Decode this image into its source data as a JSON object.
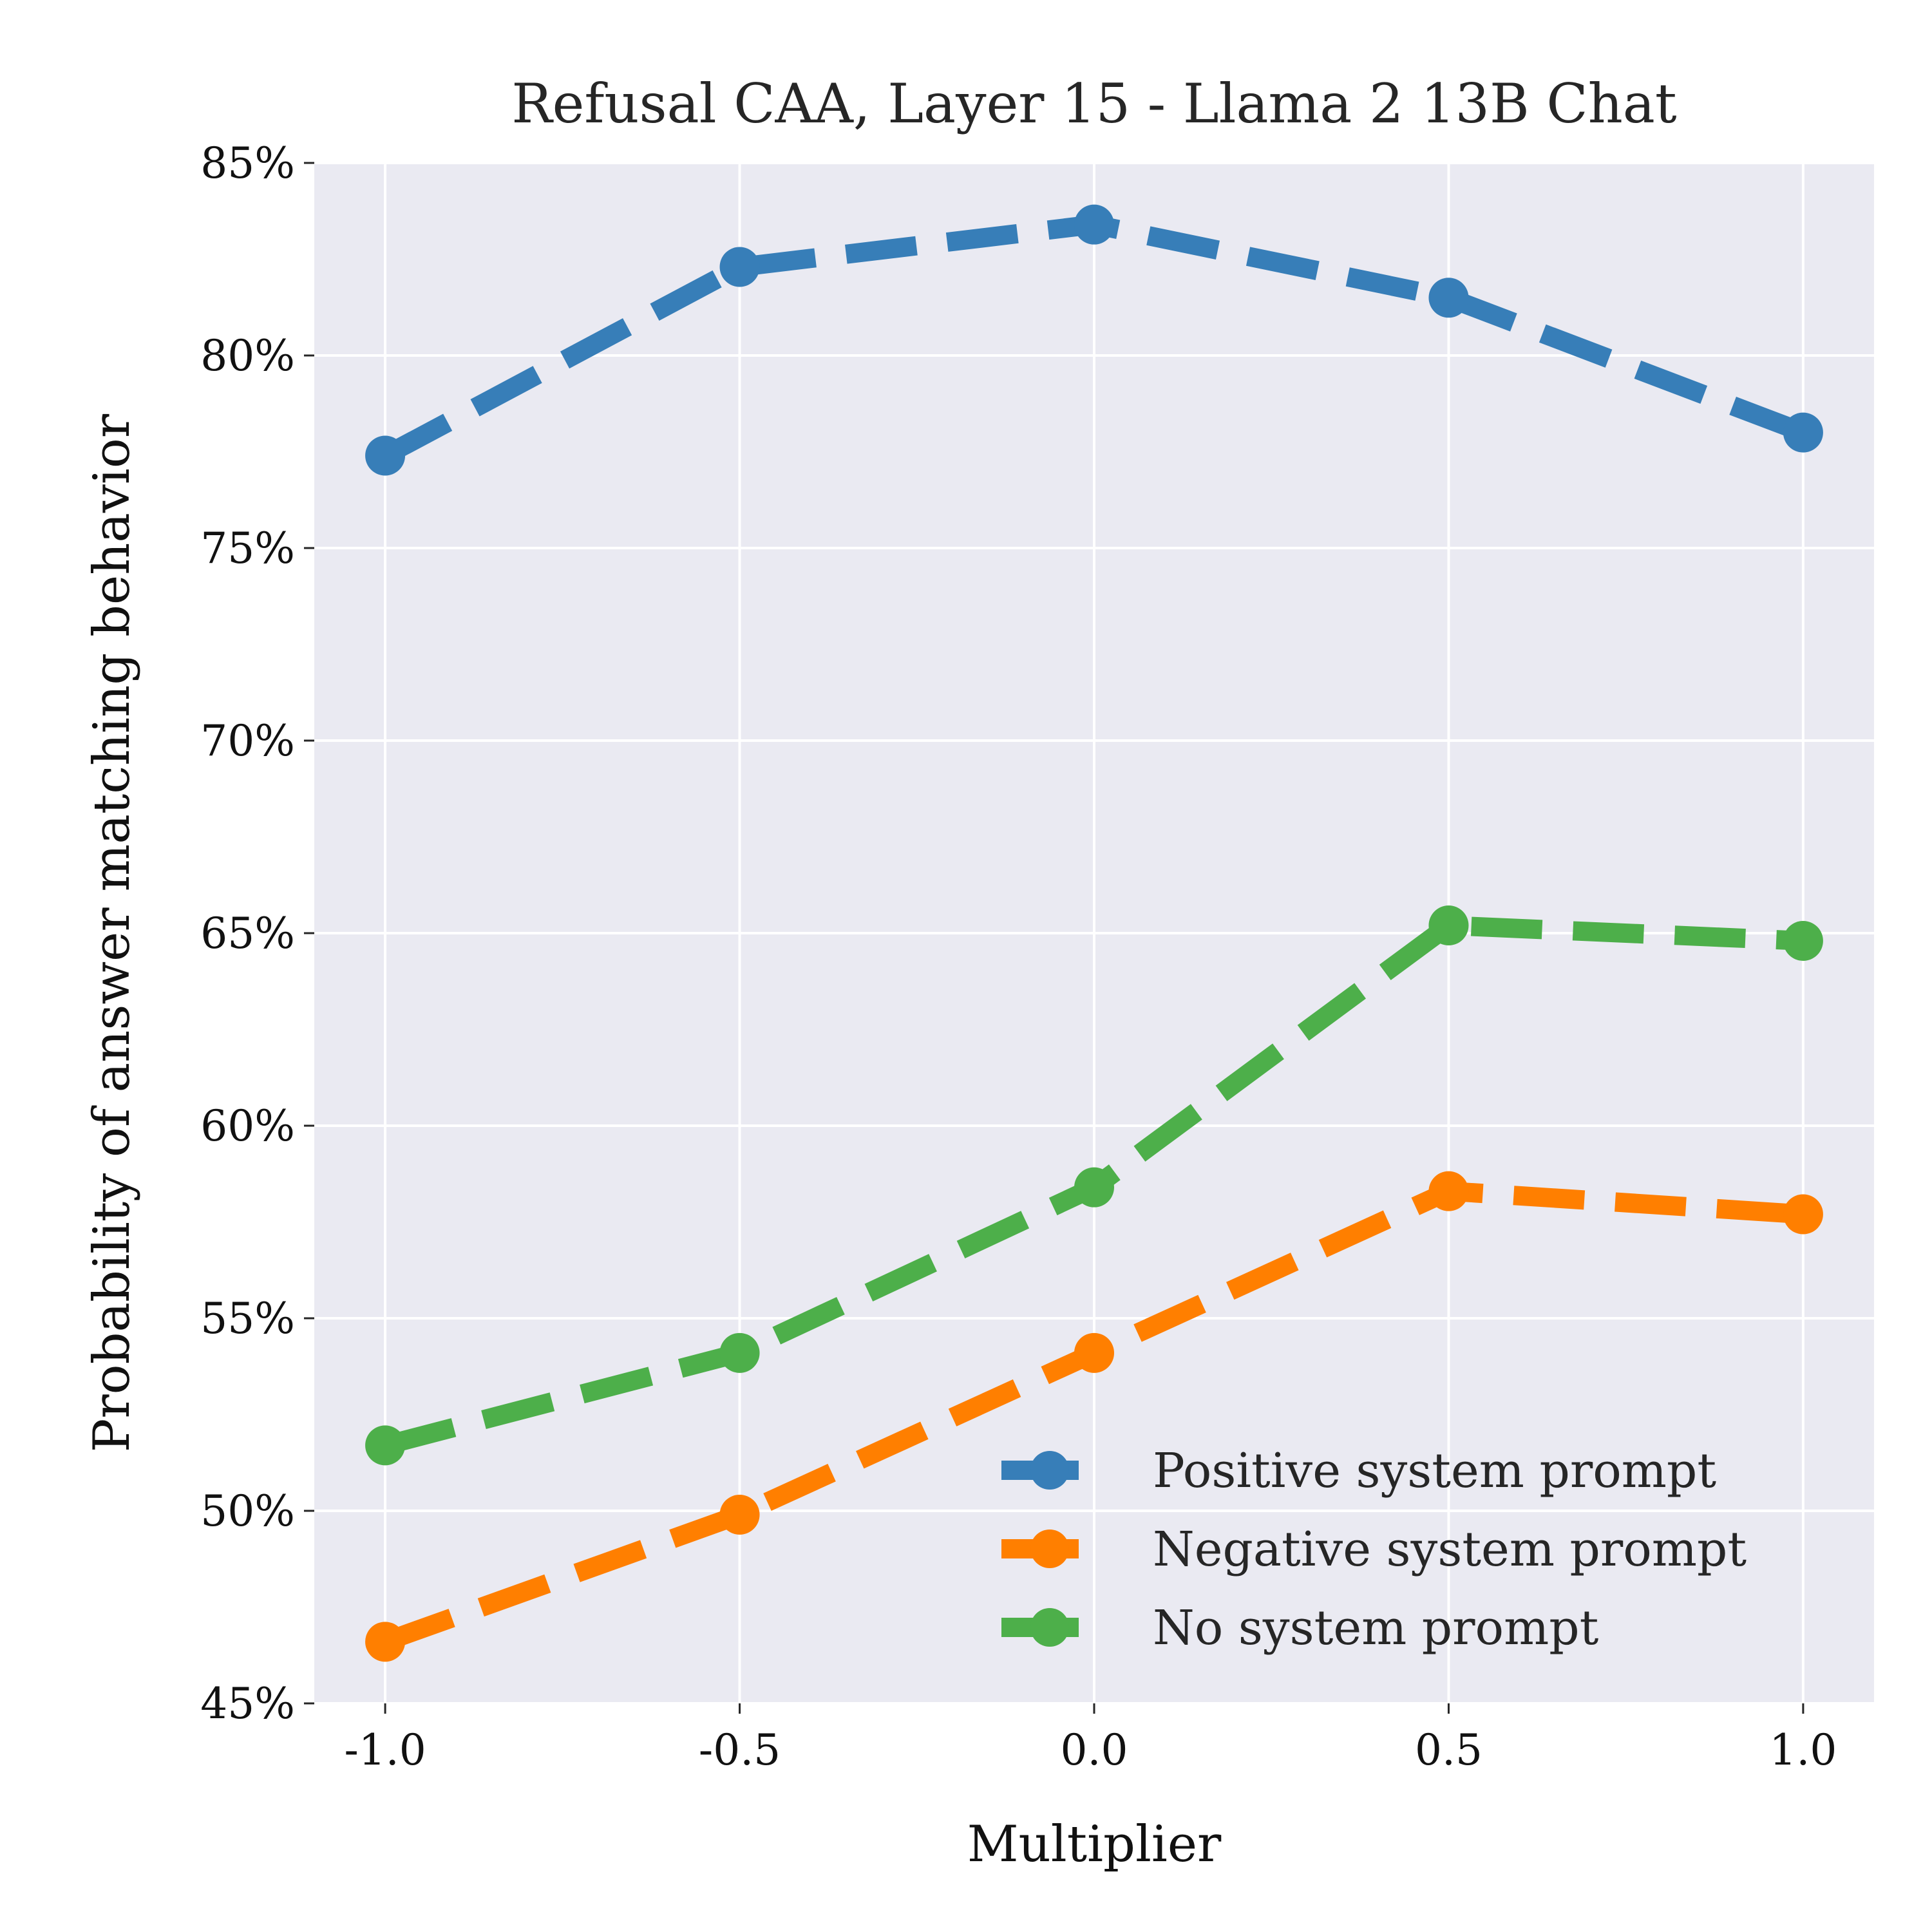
{
  "chart_data": {
    "type": "line",
    "title": "Refusal CAA, Layer 15 - Llama 2 13B Chat",
    "xlabel": "Multiplier",
    "ylabel": "Probability of answer matching behavior",
    "x": [
      -1.0,
      -0.5,
      0.0,
      0.5,
      1.0
    ],
    "x_tick_labels": [
      "-1.0",
      "-0.5",
      "0.0",
      "0.5",
      "1.0"
    ],
    "y_ticks": [
      45,
      50,
      55,
      60,
      65,
      70,
      75,
      80,
      85
    ],
    "y_tick_labels": [
      "45%",
      "50%",
      "55%",
      "60%",
      "65%",
      "70%",
      "75%",
      "80%",
      "85%"
    ],
    "xlim": [
      -1.1,
      1.1
    ],
    "ylim": [
      45,
      85
    ],
    "y_unit": "%",
    "grid": true,
    "legend_position": "bottom-right",
    "series": [
      {
        "name": "Positive system prompt",
        "color": "#377eb8",
        "values": [
          77.4,
          82.3,
          83.4,
          81.5,
          78.0
        ]
      },
      {
        "name": "Negative system prompt",
        "color": "#ff7f00",
        "values": [
          46.6,
          49.9,
          54.1,
          58.3,
          57.7
        ]
      },
      {
        "name": "No system prompt",
        "color": "#4daf4a",
        "values": [
          51.7,
          54.1,
          58.4,
          65.2,
          64.8
        ]
      }
    ]
  }
}
